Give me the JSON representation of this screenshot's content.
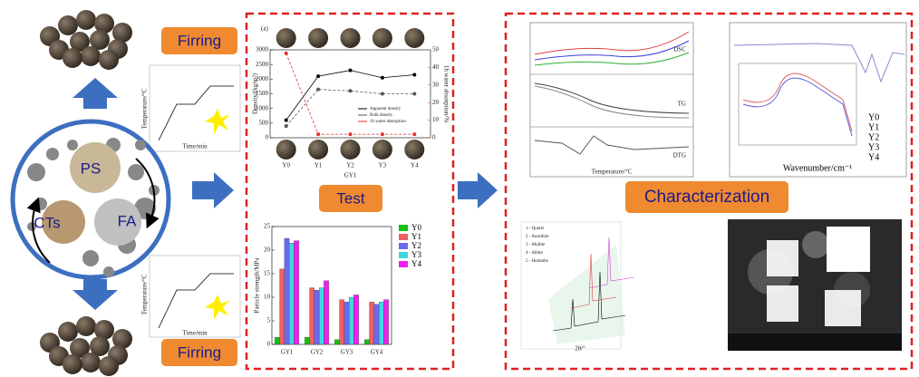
{
  "left": {
    "top_label": "Firring",
    "bottom_label": "Firring",
    "circle_labels": [
      "PS",
      "CTs",
      "FA"
    ],
    "temp_axis": "Temperature/°C",
    "time_axis": "Time/min"
  },
  "center": {
    "title": "Test",
    "density_chart": {
      "type": "line",
      "panel": "(a)",
      "y_label": "Density/(kg/m³)",
      "y2_label": "1h water absorption/%",
      "x_label": "GY1",
      "categories": [
        "Y0",
        "Y1",
        "Y2",
        "Y3",
        "Y4"
      ],
      "series": [
        {
          "name": "Apparent density",
          "color": "#000000",
          "values": [
            600,
            2100,
            2300,
            2050,
            2150
          ]
        },
        {
          "name": "Bulk density",
          "color": "#555555",
          "values": [
            400,
            1650,
            1600,
            1500,
            1500
          ]
        },
        {
          "name": "1h water absorption",
          "color": "#e03030",
          "axis": "y2",
          "values": [
            48,
            2,
            2,
            2,
            2
          ]
        }
      ],
      "ylim": [
        0,
        3000
      ],
      "yticks": [
        0,
        500,
        1000,
        1500,
        2000,
        2500,
        3000
      ],
      "y2lim": [
        0,
        50
      ],
      "y2ticks": [
        0,
        10,
        20,
        30,
        40,
        50
      ]
    },
    "strength_chart": {
      "type": "bar",
      "y_label": "Particle strength/MPa",
      "categories": [
        "GY1",
        "GY2",
        "GY3",
        "GY4"
      ],
      "series": [
        {
          "name": "Y0",
          "color": "#10c010",
          "values": [
            1.5,
            1.5,
            1,
            1
          ]
        },
        {
          "name": "Y1",
          "color": "#f06060",
          "values": [
            16,
            12,
            9.5,
            9
          ]
        },
        {
          "name": "Y2",
          "color": "#6a6af0",
          "values": [
            22.5,
            11.5,
            9,
            8.5
          ]
        },
        {
          "name": "Y3",
          "color": "#40d8e0",
          "values": [
            21.5,
            12,
            10,
            9
          ]
        },
        {
          "name": "Y4",
          "color": "#f020f0",
          "values": [
            22,
            13.5,
            10.5,
            9.5
          ]
        }
      ],
      "ylim": [
        0,
        25
      ],
      "yticks": [
        0,
        5,
        10,
        15,
        20,
        25
      ]
    }
  },
  "right": {
    "title": "Characterization",
    "tg_labels": [
      "DSC",
      "TG",
      "DTG"
    ],
    "tg_x_label": "Temperature/°C",
    "ftir_x_label": "Wavenumber/cm⁻¹",
    "ftir_legend": [
      "Y0",
      "Y1",
      "Y2",
      "Y3",
      "Y4"
    ],
    "xrd_x_label": "2θ/°",
    "xrd_phases": [
      "1 - Quartz",
      "2 - Anorthite",
      "3 - Mullite",
      "4 - Albite",
      "5 - Hematite"
    ]
  }
}
